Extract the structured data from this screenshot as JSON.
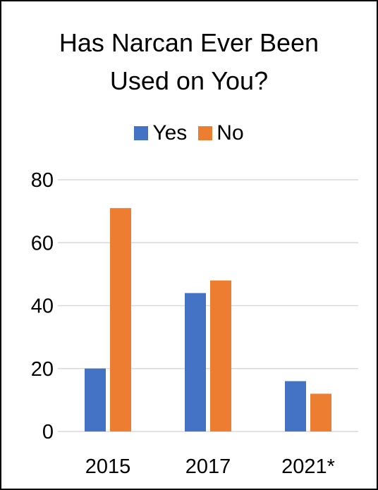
{
  "chart_data": {
    "type": "bar",
    "title_lines": [
      "Has Narcan Ever Been",
      "Used on You?"
    ],
    "categories": [
      "2015",
      "2017",
      "2021*"
    ],
    "series": [
      {
        "name": "Yes",
        "values": [
          20,
          44,
          16
        ],
        "color": "#4472C4"
      },
      {
        "name": "No",
        "values": [
          71,
          48,
          12
        ],
        "color": "#ED7D31"
      }
    ],
    "ylim": [
      0,
      80
    ],
    "yticks": [
      "0",
      "20",
      "40",
      "60",
      "80"
    ],
    "legend_position": "top",
    "grid": true
  }
}
